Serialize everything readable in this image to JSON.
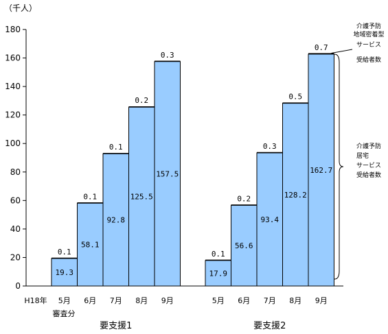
{
  "chart_data": {
    "type": "bar",
    "unit_label": "（千人）",
    "ylim": [
      0,
      180
    ],
    "yticks": [
      0,
      20,
      40,
      60,
      80,
      100,
      120,
      140,
      160,
      180
    ],
    "grid": false,
    "groups": [
      {
        "name": "要支援1",
        "pre_label": [
          "H18年",
          "審査分"
        ],
        "categories": [
          "5月",
          "6月",
          "7月",
          "8月",
          "9月"
        ],
        "series": [
          {
            "name": "介護予防 居宅 サービス 受給者数",
            "values": [
              19.3,
              58.1,
              92.8,
              125.5,
              157.5
            ]
          },
          {
            "name": "介護予防 地域密着型 サービス 受給者数",
            "values": [
              0.1,
              0.1,
              0.1,
              0.2,
              0.3
            ]
          }
        ]
      },
      {
        "name": "要支援2",
        "categories": [
          "5月",
          "6月",
          "7月",
          "8月",
          "9月"
        ],
        "series": [
          {
            "name": "介護予防 居宅 サービス 受給者数",
            "values": [
              17.9,
              56.6,
              93.4,
              128.2,
              162.7
            ]
          },
          {
            "name": "介護予防 地域密着型 サービス 受給者数",
            "values": [
              0.1,
              0.2,
              0.3,
              0.5,
              0.7
            ]
          }
        ]
      }
    ],
    "annotations": {
      "top": [
        "介護予防",
        "地域密着型",
        "サービス",
        "受給者数"
      ],
      "bottom": [
        "介護予防",
        "居宅",
        "サービス",
        "受給者数"
      ]
    },
    "colors": {
      "bar": "#99ccff",
      "outline": "#000000"
    }
  }
}
